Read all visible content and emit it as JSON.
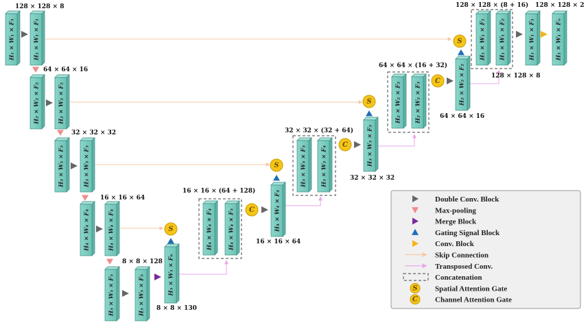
{
  "encoder": {
    "l1": {
      "dim": "128 × 128 × 8",
      "label": "H₁ × W₁ × F₁"
    },
    "l2": {
      "dim": "64 × 64 × 16",
      "label": "H₂ × W₂ × F₂"
    },
    "l3": {
      "dim": "32 × 32 × 32",
      "label": "H₃ × W₃ × F₃"
    },
    "l4": {
      "dim": "16 × 16 × 64",
      "label": "H₄ × W₄ × F₄"
    },
    "l5": {
      "dim": "8 × 8 × 128",
      "label": "H₅ × W₅ × F₅"
    }
  },
  "bottleneck": {
    "dim": "8 × 8 × 130",
    "label": "H₅ × W₅ × F₆"
  },
  "decoder": {
    "d4": {
      "concat_dim": "16 × 16 × (64 + 128)",
      "out_dim": "16 × 16 × 64",
      "labels": [
        "H₄ × W₄ × F₄",
        "H₄ × W₄ × F₅"
      ],
      "out_label": "H₄ × W₄ × F₄"
    },
    "d3": {
      "concat_dim": "32 × 32 × (32 + 64)",
      "out_dim": "32 × 32 × 32",
      "labels": [
        "H₃ × W₃ × F₃",
        "H₃ × W₃ × F₄"
      ],
      "out_label": "H₃ × W₃ × F₃"
    },
    "d2": {
      "concat_dim": "64 × 64 × (16 + 32)",
      "out_dim": "64 × 64 × 16",
      "labels": [
        "H₂ × W₂ × F₂",
        "H₂ × W₂ × F₃"
      ],
      "out_label": "H₂ × W₂ × F₂"
    },
    "d1": {
      "concat_dim": "128 × 128 × (8 + 16)",
      "out_dim": "128 × 128 × 8",
      "labels": [
        "H₁ × W₁ × F₁",
        "H₁ × W₁ × F₂"
      ],
      "out_label": "H₁ × W₁ × F₁"
    },
    "final": {
      "dim": "128 × 128 × 2",
      "label": "H₁ × W₁ × Fₒ"
    }
  },
  "gates": {
    "spatial": "S",
    "channel": "C"
  },
  "legend": [
    {
      "label": "Double Conv. Block",
      "symbol": "triangle-right",
      "color": "#666666"
    },
    {
      "label": "Max-pooling",
      "symbol": "triangle-down",
      "color": "#f08c8c"
    },
    {
      "label": "Merge Block",
      "symbol": "triangle-right",
      "color": "#7a2a9a"
    },
    {
      "label": "Gating Signal Block",
      "symbol": "triangle-up",
      "color": "#1f6fb5"
    },
    {
      "label": "Conv. Block",
      "symbol": "triangle-right",
      "color": "#f5b41a"
    },
    {
      "label": "Skip Connection",
      "symbol": "arrow",
      "color": "#f6c9a6"
    },
    {
      "label": "Transposed Conv.",
      "symbol": "arrow",
      "color": "#e8a6e8"
    },
    {
      "label": "Concatenation",
      "symbol": "dashed-box",
      "color": "#666666"
    },
    {
      "label": "Spatial Attention Gate",
      "symbol": "gate",
      "color": "#f5c518"
    },
    {
      "label": "Channel Attention Gate",
      "symbol": "gate",
      "color": "#f5c518"
    }
  ],
  "colors": {
    "block": "#7fd0c4",
    "block_edge": "#3a8c80",
    "block_side": "#5fb3a6",
    "block_top": "#a8e2d9"
  }
}
